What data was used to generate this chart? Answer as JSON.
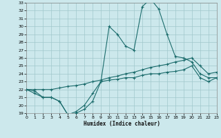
{
  "xlabel": "Humidex (Indice chaleur)",
  "bg_color": "#cce8ec",
  "grid_color": "#a0c8cc",
  "line_color": "#1a6b6b",
  "x_min": 0,
  "x_max": 23,
  "y_min": 19,
  "y_max": 33,
  "x_ticks": [
    0,
    1,
    2,
    3,
    4,
    5,
    6,
    7,
    8,
    9,
    10,
    11,
    12,
    13,
    14,
    15,
    16,
    17,
    18,
    19,
    20,
    21,
    22,
    23
  ],
  "y_ticks": [
    19,
    20,
    21,
    22,
    23,
    24,
    25,
    26,
    27,
    28,
    29,
    30,
    31,
    32,
    33
  ],
  "line1_x": [
    0,
    1,
    2,
    3,
    4,
    5,
    6,
    7,
    8,
    9,
    10,
    11,
    12,
    13,
    14,
    15,
    16,
    17,
    18,
    19,
    20,
    21,
    22,
    23
  ],
  "line1_y": [
    22.0,
    21.8,
    21.0,
    21.0,
    20.5,
    18.8,
    19.2,
    20.0,
    21.5,
    23.0,
    30.0,
    29.0,
    27.5,
    27.0,
    32.5,
    33.5,
    32.2,
    29.0,
    26.2,
    26.0,
    25.5,
    24.0,
    23.5,
    23.5
  ],
  "line2_x": [
    0,
    1,
    2,
    3,
    4,
    5,
    6,
    7,
    8,
    9,
    10,
    11,
    12,
    13,
    14,
    15,
    16,
    17,
    18,
    19,
    20,
    21,
    22,
    23
  ],
  "line2_y": [
    22.0,
    22.0,
    22.0,
    22.0,
    22.2,
    22.4,
    22.5,
    22.7,
    23.0,
    23.2,
    23.5,
    23.7,
    24.0,
    24.2,
    24.5,
    24.8,
    25.0,
    25.2,
    25.5,
    25.7,
    26.0,
    25.0,
    24.0,
    24.2
  ],
  "line3_x": [
    0,
    1,
    2,
    3,
    4,
    5,
    6,
    7,
    8,
    9,
    10,
    11,
    12,
    13,
    14,
    15,
    16,
    17,
    18,
    19,
    20,
    21,
    22,
    23
  ],
  "line3_y": [
    22.0,
    21.5,
    21.0,
    21.0,
    20.5,
    18.8,
    19.0,
    19.5,
    20.5,
    23.0,
    23.2,
    23.3,
    23.5,
    23.5,
    23.8,
    24.0,
    24.0,
    24.2,
    24.3,
    24.5,
    25.0,
    23.5,
    23.0,
    23.5
  ]
}
